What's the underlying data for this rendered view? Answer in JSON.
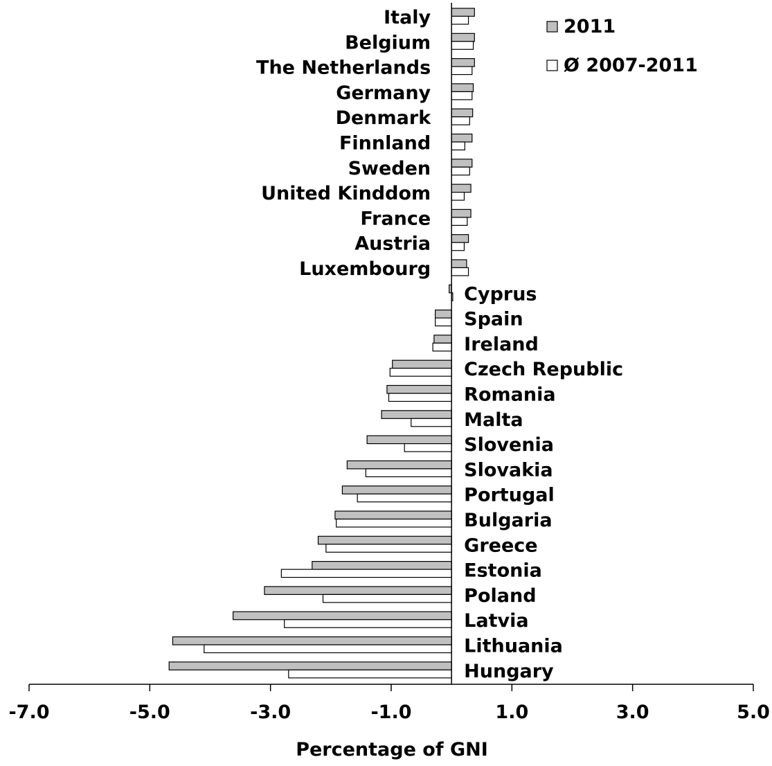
{
  "chart_data": {
    "type": "bar",
    "orientation": "horizontal",
    "title": "",
    "xlabel": "Percentage of GNI",
    "ylabel": "",
    "xlim": [
      -7.0,
      5.0
    ],
    "xticks": [
      -7.0,
      -5.0,
      -3.0,
      -1.0,
      1.0,
      3.0,
      5.0
    ],
    "xtick_labels": [
      "-7.0",
      "-5.0",
      "-3.0",
      "-1.0",
      "1.0",
      "3.0",
      "5.0"
    ],
    "grid": false,
    "legend_position": "top-right",
    "categories": [
      "Italy",
      "Belgium",
      "The Netherlands",
      "Germany",
      "Denmark",
      "Finnland",
      "Sweden",
      "United Kinddom",
      "France",
      "Austria",
      "Luxembourg",
      "Cyprus",
      "Spain",
      "Ireland",
      "Czech Republic",
      "Romania",
      "Malta",
      "Slovenia",
      "Slovakia",
      "Portugal",
      "Bulgaria",
      "Greece",
      "Estonia",
      "Poland",
      "Latvia",
      "Lithuania",
      "Hungary"
    ],
    "series": [
      {
        "name": "2011",
        "color": "#c0c0c0",
        "values": [
          0.38,
          0.38,
          0.38,
          0.36,
          0.35,
          0.34,
          0.34,
          0.32,
          0.32,
          0.28,
          0.25,
          -0.04,
          -0.27,
          -0.29,
          -0.98,
          -1.07,
          -1.16,
          -1.4,
          -1.73,
          -1.81,
          -1.93,
          -2.21,
          -2.31,
          -3.1,
          -3.62,
          -4.62,
          -4.68
        ]
      },
      {
        "name": "Ø 2007-2011",
        "color": "#ffffff",
        "values": [
          0.28,
          0.36,
          0.34,
          0.34,
          0.3,
          0.22,
          0.3,
          0.21,
          0.26,
          0.21,
          0.28,
          0.02,
          -0.27,
          -0.31,
          -1.02,
          -1.04,
          -0.67,
          -0.78,
          -1.42,
          -1.56,
          -1.91,
          -2.08,
          -2.82,
          -2.13,
          -2.77,
          -4.1,
          -2.7
        ]
      }
    ]
  }
}
